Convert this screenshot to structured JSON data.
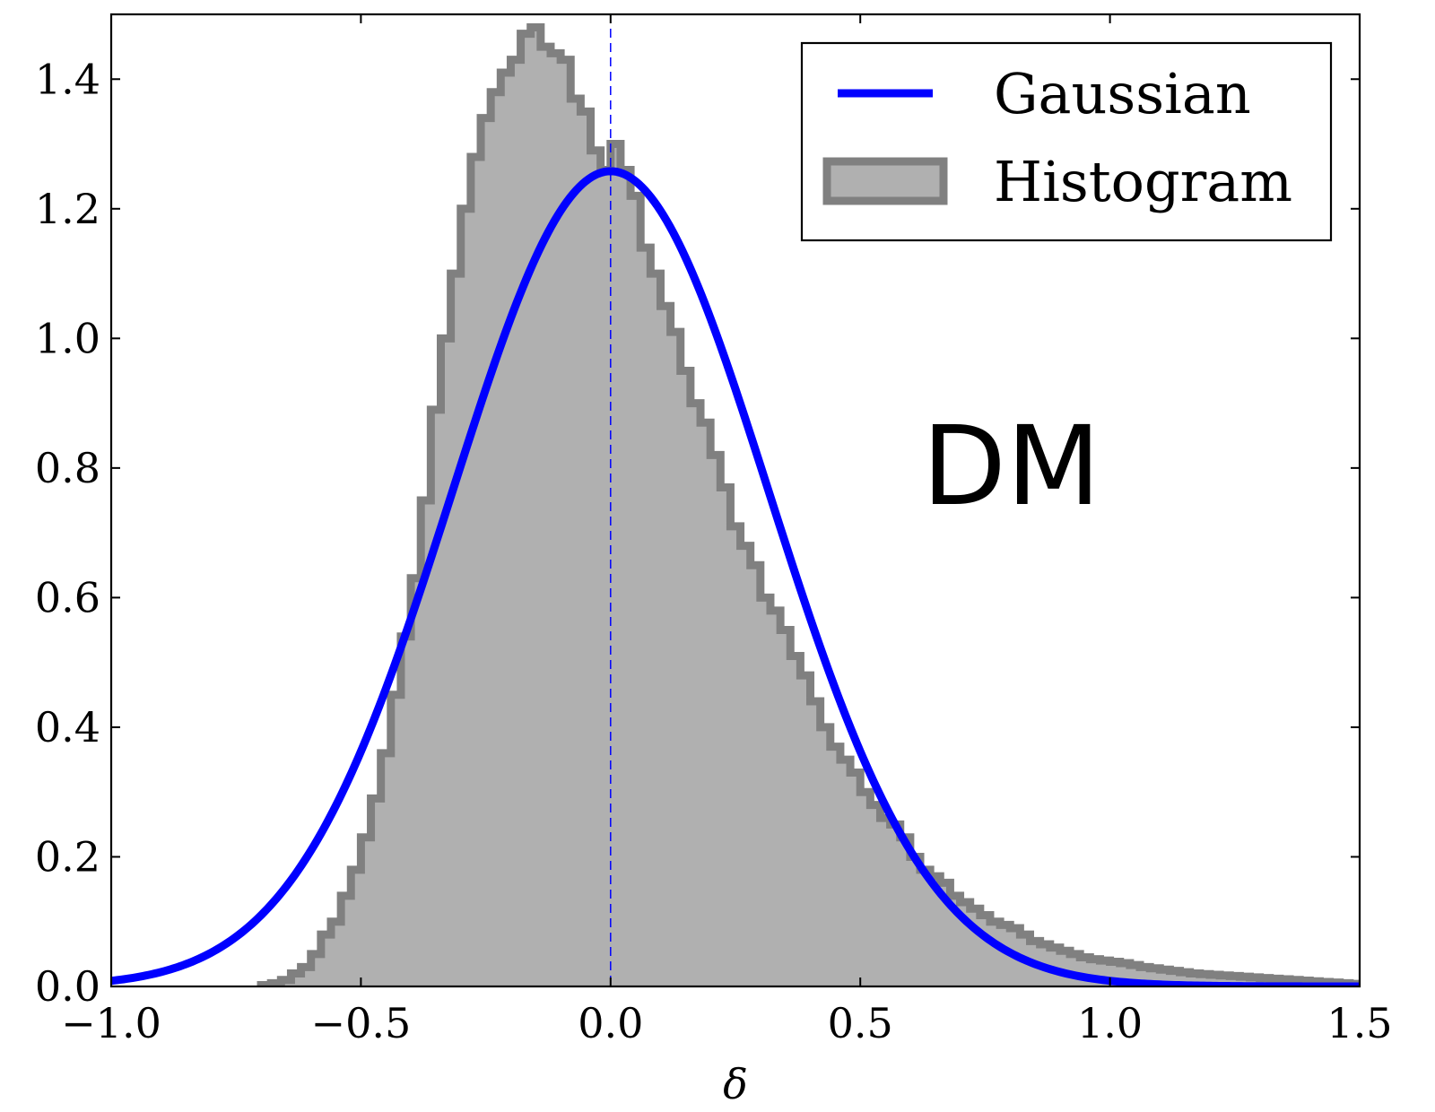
{
  "chart_data": {
    "type": "histogram",
    "xlabel": "δ",
    "ylabel": "",
    "xlim": [
      -1.0,
      1.5
    ],
    "ylim": [
      0.0,
      1.5
    ],
    "x_ticks": [
      -1.0,
      -0.5,
      0.0,
      0.5,
      1.0,
      1.5
    ],
    "x_tick_labels": [
      "−1.0",
      "−0.5",
      "0.0",
      "0.5",
      "1.0",
      "1.5"
    ],
    "y_ticks": [
      0.0,
      0.2,
      0.4,
      0.6,
      0.8,
      1.0,
      1.2,
      1.4
    ],
    "y_tick_labels": [
      "0.0",
      "0.2",
      "0.4",
      "0.6",
      "0.8",
      "1.0",
      "1.2",
      "1.4"
    ],
    "annotation": "DM",
    "legend": {
      "placement": "top-right",
      "entries": [
        {
          "label": "Gaussian",
          "kind": "line",
          "color": "#0000ff"
        },
        {
          "label": "Histogram",
          "kind": "patch",
          "color": "#b0b0b0",
          "edge": "#808080"
        }
      ]
    },
    "reference_line": {
      "x": 0.0,
      "style": "dashed",
      "color": "#0000ff"
    },
    "gaussian": {
      "mean": 0.0,
      "sigma": 0.317,
      "peak": 1.258,
      "color": "#0000ff"
    },
    "histogram": {
      "color": "#b0b0b0",
      "edge_color": "#808080",
      "bin_edges": [
        -0.7,
        -0.68,
        -0.66,
        -0.64,
        -0.62,
        -0.6,
        -0.58,
        -0.56,
        -0.54,
        -0.52,
        -0.5,
        -0.48,
        -0.46,
        -0.44,
        -0.42,
        -0.4,
        -0.38,
        -0.36,
        -0.34,
        -0.32,
        -0.3,
        -0.28,
        -0.26,
        -0.24,
        -0.22,
        -0.2,
        -0.18,
        -0.16,
        -0.14,
        -0.12,
        -0.1,
        -0.08,
        -0.06,
        -0.04,
        -0.02,
        0.0,
        0.02,
        0.04,
        0.06,
        0.08,
        0.1,
        0.12,
        0.14,
        0.16,
        0.18,
        0.2,
        0.22,
        0.24,
        0.26,
        0.28,
        0.3,
        0.32,
        0.34,
        0.36,
        0.38,
        0.4,
        0.42,
        0.44,
        0.46,
        0.48,
        0.5,
        0.52,
        0.54,
        0.56,
        0.58,
        0.6,
        0.62,
        0.64,
        0.66,
        0.68,
        0.7,
        0.72,
        0.74,
        0.76,
        0.78,
        0.8,
        0.82,
        0.84,
        0.86,
        0.88,
        0.9,
        0.92,
        0.94,
        0.96,
        0.98,
        1.0,
        1.02,
        1.04,
        1.06,
        1.08,
        1.1,
        1.12,
        1.14,
        1.16,
        1.18,
        1.2,
        1.22,
        1.24,
        1.26,
        1.28,
        1.3,
        1.32,
        1.34,
        1.36,
        1.38,
        1.4,
        1.42,
        1.44,
        1.46,
        1.48,
        1.5
      ],
      "heights": [
        0.002,
        0.005,
        0.01,
        0.02,
        0.03,
        0.05,
        0.08,
        0.1,
        0.14,
        0.18,
        0.23,
        0.29,
        0.36,
        0.45,
        0.54,
        0.63,
        0.75,
        0.89,
        1.0,
        1.1,
        1.2,
        1.28,
        1.34,
        1.38,
        1.41,
        1.43,
        1.47,
        1.48,
        1.45,
        1.44,
        1.43,
        1.37,
        1.35,
        1.29,
        1.26,
        1.3,
        1.26,
        1.22,
        1.14,
        1.1,
        1.05,
        1.01,
        0.95,
        0.9,
        0.87,
        0.82,
        0.77,
        0.71,
        0.68,
        0.65,
        0.6,
        0.58,
        0.55,
        0.51,
        0.48,
        0.44,
        0.4,
        0.37,
        0.35,
        0.33,
        0.3,
        0.28,
        0.26,
        0.25,
        0.23,
        0.2,
        0.18,
        0.17,
        0.16,
        0.14,
        0.13,
        0.12,
        0.11,
        0.1,
        0.095,
        0.09,
        0.08,
        0.07,
        0.065,
        0.06,
        0.055,
        0.05,
        0.045,
        0.042,
        0.04,
        0.038,
        0.036,
        0.033,
        0.03,
        0.028,
        0.026,
        0.024,
        0.022,
        0.02,
        0.019,
        0.018,
        0.017,
        0.016,
        0.015,
        0.014,
        0.013,
        0.012,
        0.011,
        0.01,
        0.009,
        0.008,
        0.007,
        0.006,
        0.005,
        0.004
      ]
    }
  }
}
